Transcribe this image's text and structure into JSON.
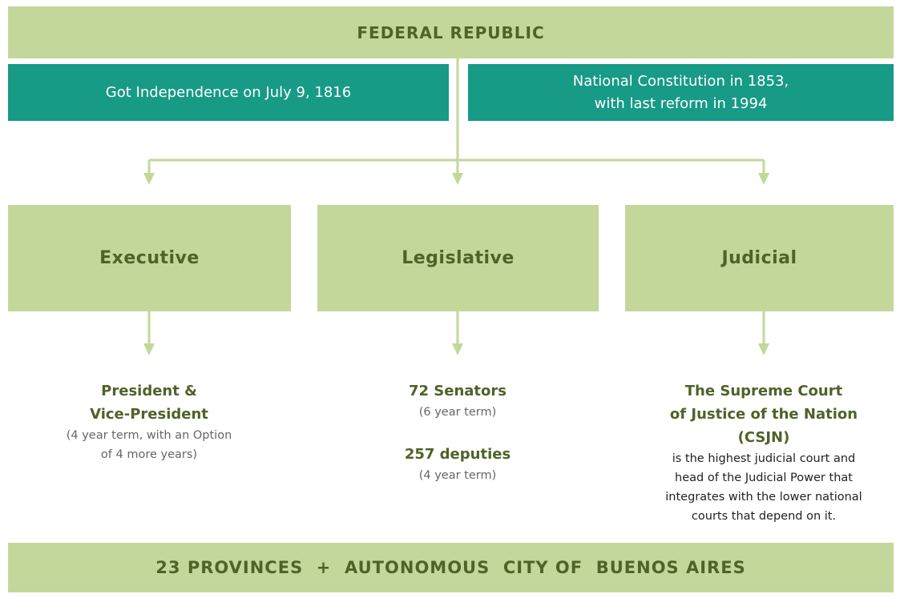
{
  "header": {
    "title": "FEDERAL REPUBLIC"
  },
  "facts": [
    [
      "Got Independence on July 9, 1816"
    ],
    [
      "National Constitution in 1853,",
      "with last reform in 1994"
    ]
  ],
  "branches": [
    {
      "name": "Executive",
      "groups": [
        {
          "title": [
            "President &",
            "Vice-President"
          ],
          "note": [
            "(4 year term, with an Option",
            "of 4 more years)"
          ]
        }
      ]
    },
    {
      "name": "Legislative",
      "groups": [
        {
          "title": [
            "72 Senators"
          ],
          "note": [
            "(6 year term)"
          ]
        },
        {
          "title": [
            "257 deputies"
          ],
          "note": [
            "(4 year term)"
          ]
        }
      ]
    },
    {
      "name": "Judicial",
      "groups": [
        {
          "title": [
            "The Supreme Court",
            "of Justice of the Nation",
            "(CSJN)"
          ],
          "note": [
            "is the highest judicial court and",
            "head of the Judicial Power that",
            "integrates with the lower national",
            "courts that depend on it."
          ]
        }
      ]
    }
  ],
  "footer": {
    "title": "23 PROVINCES  +  AUTONOMOUS  CITY OF  BUENOS AIRES"
  }
}
